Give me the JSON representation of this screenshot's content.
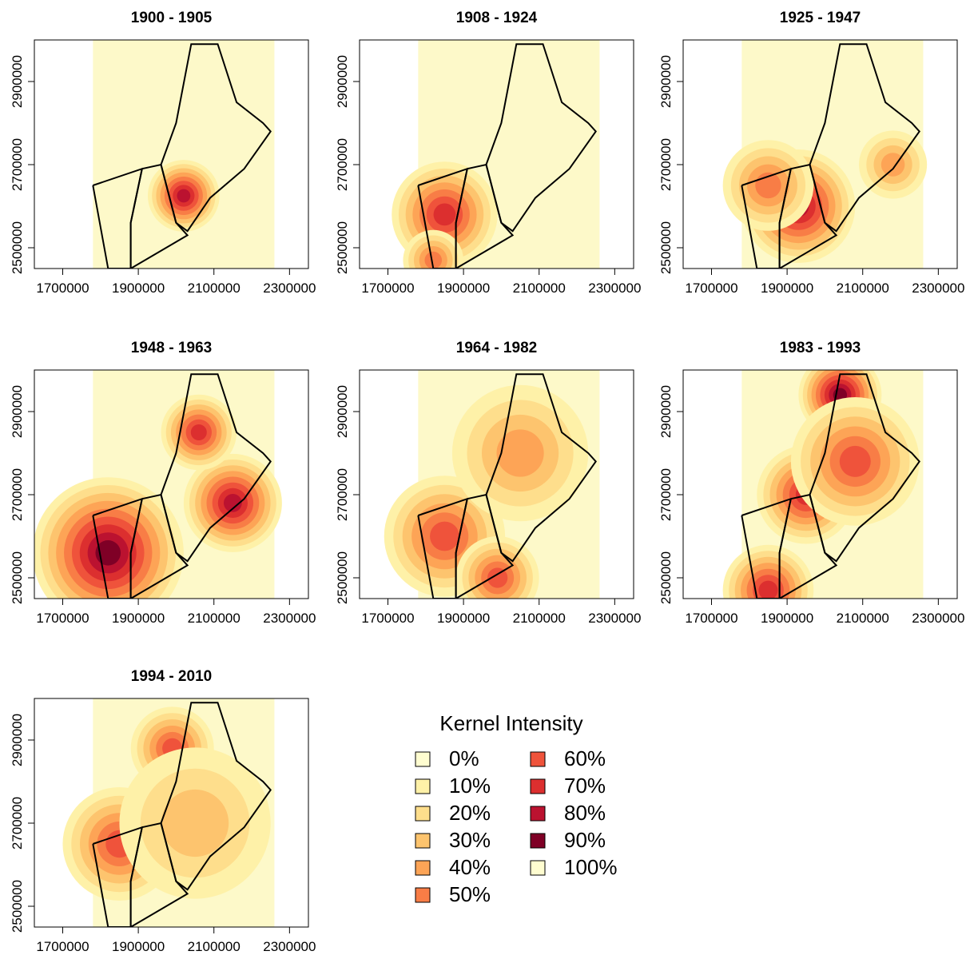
{
  "figure": {
    "colors": {
      "background": "#fdf9c9",
      "outline": "#000000",
      "levels": [
        "#fffdd0",
        "#fef1a8",
        "#fede8c",
        "#fdc46e",
        "#fda456",
        "#f87d46",
        "#ef533b",
        "#dc2f2f",
        "#bb1230",
        "#7f0026",
        "#fffdd0"
      ]
    },
    "axes": {
      "x_ticks": [
        "1700000",
        "1900000",
        "2100000",
        "2300000"
      ],
      "y_ticks": [
        "2500000",
        "2700000",
        "2900000"
      ],
      "x_values": [
        1700000,
        1900000,
        2100000,
        2300000
      ],
      "y_values": [
        2500000,
        2700000,
        2900000
      ],
      "xlim": [
        1625000,
        2350000
      ],
      "ylim": [
        2450000,
        3000000
      ]
    },
    "panels": [
      {
        "title": "1900 - 1905",
        "hotspots": [
          {
            "x": 2020000,
            "y": 2625000,
            "r": 95000,
            "level": 8
          }
        ]
      },
      {
        "title": "1908 - 1924",
        "hotspots": [
          {
            "x": 1850000,
            "y": 2580000,
            "r": 140000,
            "level": 7
          },
          {
            "x": 1820000,
            "y": 2470000,
            "r": 80000,
            "level": 5
          }
        ]
      },
      {
        "title": "1925 - 1947",
        "hotspots": [
          {
            "x": 1930000,
            "y": 2600000,
            "r": 150000,
            "level": 8
          },
          {
            "x": 1850000,
            "y": 2650000,
            "r": 120000,
            "level": 5
          },
          {
            "x": 2180000,
            "y": 2700000,
            "r": 90000,
            "level": 4
          }
        ]
      },
      {
        "title": "1948 - 1963",
        "hotspots": [
          {
            "x": 1820000,
            "y": 2560000,
            "r": 200000,
            "level": 9
          },
          {
            "x": 2150000,
            "y": 2680000,
            "r": 130000,
            "level": 8
          },
          {
            "x": 2060000,
            "y": 2850000,
            "r": 100000,
            "level": 7
          }
        ]
      },
      {
        "title": "1964 - 1982",
        "hotspots": [
          {
            "x": 1850000,
            "y": 2600000,
            "r": 160000,
            "level": 6
          },
          {
            "x": 1990000,
            "y": 2500000,
            "r": 110000,
            "level": 6
          },
          {
            "x": 2050000,
            "y": 2800000,
            "r": 180000,
            "level": 4
          }
        ]
      },
      {
        "title": "1983 - 1993",
        "hotspots": [
          {
            "x": 2040000,
            "y": 2940000,
            "r": 110000,
            "level": 9
          },
          {
            "x": 1850000,
            "y": 2470000,
            "r": 120000,
            "level": 7
          },
          {
            "x": 1950000,
            "y": 2700000,
            "r": 130000,
            "level": 7
          },
          {
            "x": 2080000,
            "y": 2780000,
            "r": 170000,
            "level": 6
          }
        ]
      },
      {
        "title": "1994 - 2010",
        "hotspots": [
          {
            "x": 1850000,
            "y": 2650000,
            "r": 150000,
            "level": 6
          },
          {
            "x": 1990000,
            "y": 2880000,
            "r": 110000,
            "level": 6
          },
          {
            "x": 2050000,
            "y": 2700000,
            "r": 200000,
            "level": 3
          }
        ]
      }
    ],
    "legend": {
      "title": "Kernel Intensity",
      "items": [
        "0%",
        "10%",
        "20%",
        "30%",
        "40%",
        "50%",
        "60%",
        "70%",
        "80%",
        "90%",
        "100%"
      ]
    }
  }
}
